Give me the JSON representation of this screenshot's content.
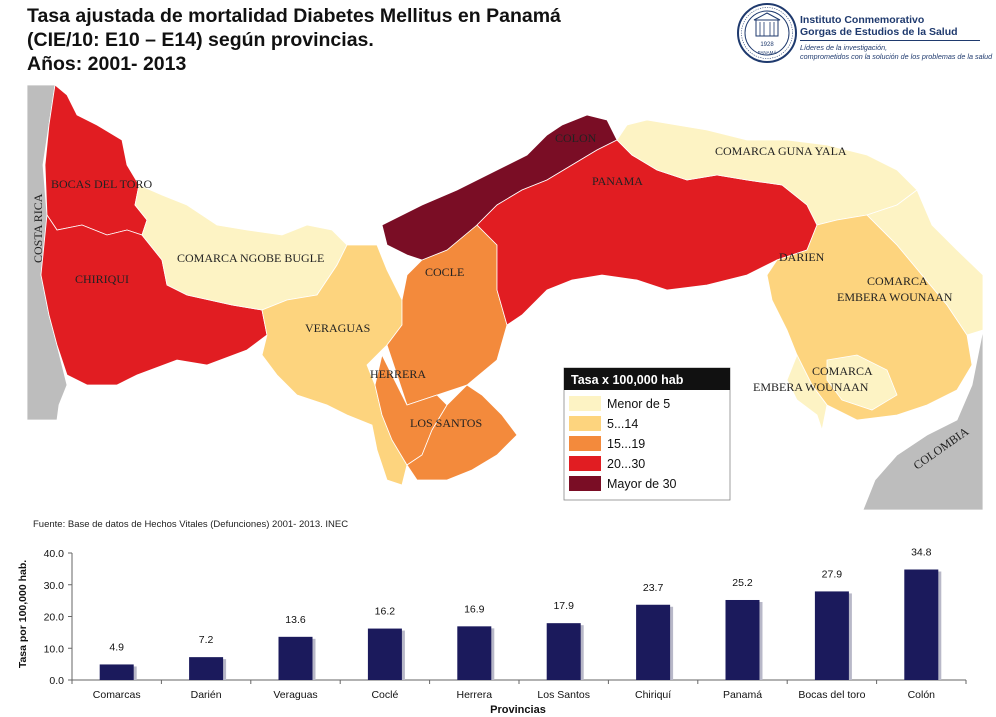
{
  "title": {
    "line1": "Tasa ajustada de mortalidad Diabetes Mellitus en Panamá",
    "line2": "(CIE/10:  E10 – E14) según provincias.",
    "line3": "Años: 2001- 2013"
  },
  "logo": {
    "name_line1": "Instituto Conmemorativo",
    "name_line2": "Gorgas de Estudios de la Salud",
    "tagline1": "Líderes de la investigación,",
    "tagline2": "comprometidos con la solución de los problemas de la salud",
    "seal_text": "1928",
    "seal_bottom": "PANAMÁ"
  },
  "map": {
    "labels": {
      "bocas": "BOCAS DEL TORO",
      "chiriqui": "CHIRIQUI",
      "ngobe": "COMARCA NGOBE BUGLE",
      "veraguas": "VERAGUAS",
      "cocle": "COCLE",
      "herrera": "HERRERA",
      "los_santos": "LOS SANTOS",
      "colon": "COLON",
      "panama": "PANAMA",
      "guna": "COMARCA GUNA YALA",
      "darien": "DARIEN",
      "embera1_a": "COMARCA",
      "embera1_b": "EMBERA WOUNAAN",
      "embera2_a": "COMARCA",
      "embera2_b": "EMBERA WOUNAAN",
      "costa_rica": "COSTA RICA",
      "colombia": "COLOMBIA"
    },
    "colors": {
      "c1": "#fdf3c4",
      "c2": "#fdd47e",
      "c3": "#f38a3c",
      "c4": "#e11d22",
      "c5": "#7a0d25",
      "neighbor": "#bdbdbd",
      "sea": "#ffffff"
    },
    "legend": {
      "title": "Tasa x 100,000 hab",
      "items": [
        {
          "label": "Menor de 5",
          "color": "#fdf3c4"
        },
        {
          "label": "5...14",
          "color": "#fdd47e"
        },
        {
          "label": "15...19",
          "color": "#f38a3c"
        },
        {
          "label": "20...30",
          "color": "#e11d22"
        },
        {
          "label": "Mayor de 30",
          "color": "#7a0d25"
        }
      ]
    }
  },
  "source": "Fuente: Base de datos de Hechos Vitales (Defunciones) 2001- 2013. INEC",
  "chart_data": {
    "type": "bar",
    "categories": [
      "Comarcas",
      "Darién",
      "Veraguas",
      "Coclé",
      "Herrera",
      "Los Santos",
      "Chiriquí",
      "Panamá",
      "Bocas del toro",
      "Colón"
    ],
    "values": [
      4.9,
      7.2,
      13.6,
      16.2,
      16.9,
      17.9,
      23.7,
      25.2,
      27.9,
      34.8
    ],
    "value_labels": [
      "4.9",
      "7.2",
      "13.6",
      "16.2",
      "16.9",
      "17.9",
      "23.7",
      "25.2",
      "27.9",
      "34.8"
    ],
    "yticks": [
      "0.0",
      "10.0",
      "20.0",
      "30.0",
      "40.0"
    ],
    "ylim": [
      0,
      40
    ],
    "ylabel": "Tasa por 100,000 hab.",
    "xlabel": "Provincias",
    "bar_color": "#1b1a5c",
    "grid": false,
    "legend": "none"
  }
}
